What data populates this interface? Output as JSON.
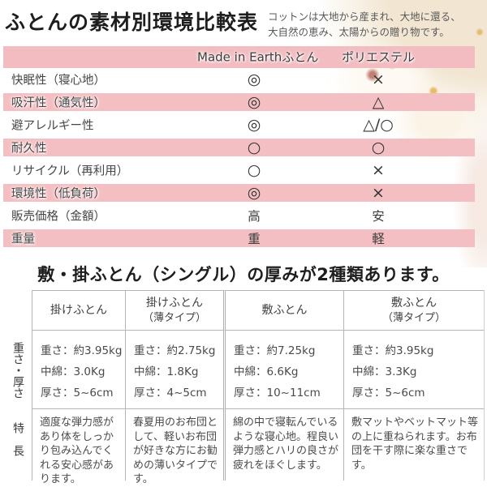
{
  "page": {
    "title": "ふとんの素材別環境比較表",
    "subtitle_line1": "コットンは大地から産まれ、大地に還る、",
    "subtitle_line2": "大自然の恵み、太陽からの贈り物です。"
  },
  "colors": {
    "row_pink": "#f4bfc3",
    "header_pink": "#f2bcc1",
    "border_gray": "#b5b5b5",
    "text_dark": "#1e1e1e"
  },
  "comparison": {
    "col1_header": "Made in Earthふとん",
    "col2_header": "ポリエステル",
    "rows": [
      {
        "label": "快眠性（寝心地）",
        "made_in_earth": "◎",
        "polyester": "×"
      },
      {
        "label": "吸汗性（通気性）",
        "made_in_earth": "◎",
        "polyester": "△"
      },
      {
        "label": "避アレルギー性",
        "made_in_earth": "◎",
        "polyester": "△/○"
      },
      {
        "label": "耐久性",
        "made_in_earth": "○",
        "polyester": "○"
      },
      {
        "label": "リサイクル（再利用）",
        "made_in_earth": "○",
        "polyester": "×"
      },
      {
        "label": "環境性（低負荷）",
        "made_in_earth": "◎",
        "polyester": "×"
      },
      {
        "label": "販売価格（金額）",
        "made_in_earth": "高",
        "polyester": "安"
      },
      {
        "label": "重量",
        "made_in_earth": "重",
        "polyester": "軽"
      }
    ]
  },
  "thickness": {
    "heading": "敷・掛ふとん（シングル）の厚みが2種類あります。",
    "row_labels": {
      "specs": "重さ・厚さ",
      "features": "特長"
    },
    "columns": [
      {
        "name": "掛けふとん"
      },
      {
        "name": "掛けふとん",
        "sub": "（薄タイプ）"
      },
      {
        "name": "敷ふとん"
      },
      {
        "name": "敷ふとん",
        "sub": "（薄タイプ）"
      }
    ],
    "specs": [
      {
        "weight": "重さ：約3.95kg",
        "filling": "中綿：3.0Kg",
        "thick": "厚さ：5~6cm"
      },
      {
        "weight": "重さ：約2.75kg",
        "filling": "中綿：1.8Kg",
        "thick": "厚さ：4~5cm"
      },
      {
        "weight": "重さ：約7.25kg",
        "filling": "中綿：6.6Kg",
        "thick": "厚さ：10~11cm"
      },
      {
        "weight": "重さ：約3.95kg",
        "filling": "中綿：3.3Kg",
        "thick": "厚さ：5~6cm"
      }
    ],
    "features": [
      "適度な弾力感があり体をしっかり包み込んでくれる安心感があります。",
      "春夏用のお布団として、軽いお布団が好きな方にお勧めの薄いタイプです。",
      "綿の中で寝転んでいるような寝心地。程良い弾力感とハリの良さが疲れをほぐします。",
      "敷マットやベットマット等の上に重ねられます。お布団を干す際に楽な重さです。"
    ]
  }
}
